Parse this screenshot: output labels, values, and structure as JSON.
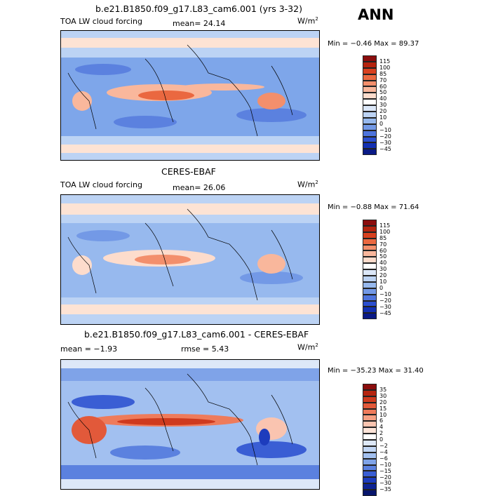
{
  "season": "ANN",
  "panels": [
    {
      "title": "b.e21.B1850.f09_g17.L83_cam6.001 (yrs 3-32)",
      "var_label": "TOA LW cloud forcing",
      "stat1": "mean=  24.14",
      "stat2": "",
      "units": "W/m",
      "units_sup": "2",
      "minmax": "Min =  −0.46 Max =  89.37",
      "cbar_labels": [
        "115",
        "100",
        "85",
        "70",
        "60",
        "50",
        "40",
        "30",
        "20",
        "10",
        "0",
        "−10",
        "−20",
        "−30",
        "−45"
      ],
      "cbar_colors": [
        "#8b0d0d",
        "#b5240f",
        "#d8401e",
        "#ea6840",
        "#f38f6c",
        "#f9b79c",
        "#fddccc",
        "#ffffff",
        "#dbe7f8",
        "#bcd3f4",
        "#97b9ee",
        "#7399e6",
        "#4e74dd",
        "#2c4fcf",
        "#1330b2",
        "#0a1a86"
      ]
    },
    {
      "title": "CERES-EBAF",
      "var_label": "TOA LW cloud forcing",
      "stat1": "mean=  26.06",
      "stat2": "",
      "units": "W/m",
      "units_sup": "2",
      "minmax": "Min =  −0.88 Max =  71.64",
      "cbar_labels": [
        "115",
        "100",
        "85",
        "70",
        "60",
        "50",
        "40",
        "30",
        "20",
        "10",
        "0",
        "−10",
        "−20",
        "−30",
        "−45"
      ],
      "cbar_colors": [
        "#8b0d0d",
        "#b5240f",
        "#d8401e",
        "#ea6840",
        "#f38f6c",
        "#f9b79c",
        "#fddccc",
        "#ffffff",
        "#dbe7f8",
        "#bcd3f4",
        "#97b9ee",
        "#7399e6",
        "#4e74dd",
        "#2c4fcf",
        "#1330b2",
        "#0a1a86"
      ]
    },
    {
      "title": "b.e21.B1850.f09_g17.L83_cam6.001 - CERES-EBAF",
      "var_label": "",
      "stat1": "mean =  −1.93",
      "stat2": "rmse =   5.43",
      "units": "W/m",
      "units_sup": "2",
      "minmax": "Min = −35.23 Max =  31.40",
      "cbar_labels": [
        "35",
        "30",
        "20",
        "15",
        "10",
        "6",
        "4",
        "2",
        "0",
        "−2",
        "−4",
        "−6",
        "−10",
        "−15",
        "−20",
        "−30",
        "−35"
      ],
      "cbar_colors": [
        "#8b0d0d",
        "#b5240f",
        "#cf3a1e",
        "#e2593a",
        "#ee7b5b",
        "#f5a083",
        "#fac4b0",
        "#fde4d8",
        "#ffffff",
        "#dde8f8",
        "#c1d6f5",
        "#a2c0f0",
        "#7fa3e8",
        "#5b81df",
        "#3a5ed4",
        "#1d3cbd",
        "#0e2494",
        "#07156c"
      ]
    }
  ]
}
